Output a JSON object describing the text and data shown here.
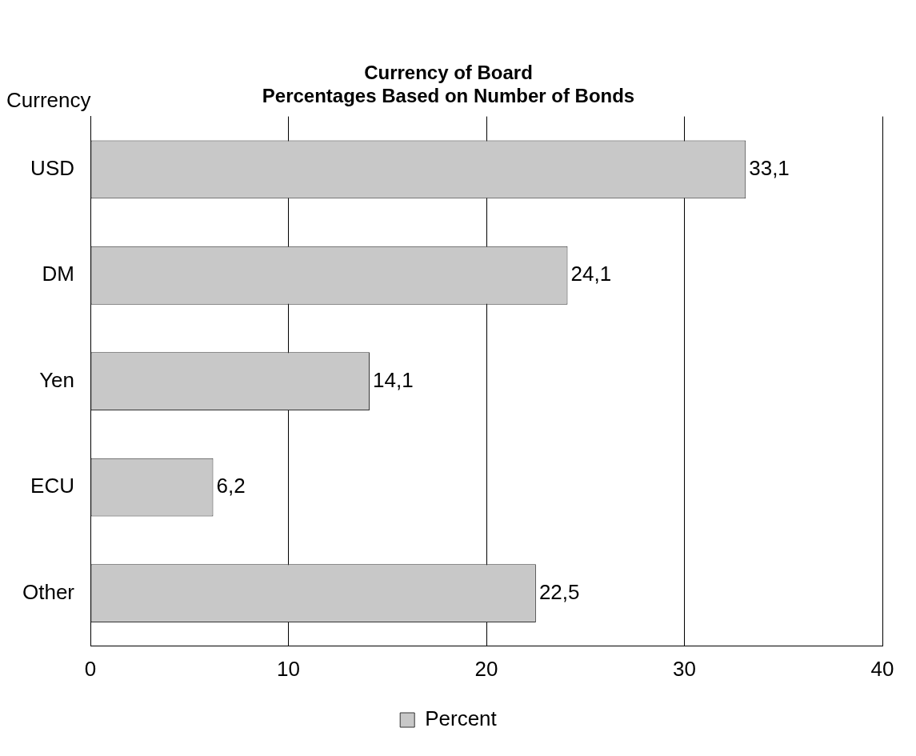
{
  "chart_data": {
    "type": "bar",
    "orientation": "horizontal",
    "title": [
      "Currency of Board",
      "Percentages Based on Number of Bonds"
    ],
    "ylabel": "Currency",
    "categories": [
      "USD",
      "DM",
      "Yen",
      "ECU",
      "Other"
    ],
    "series": [
      {
        "name": "Percent",
        "color": "#c8c8c8",
        "values": [
          33.1,
          24.1,
          14.1,
          6.2,
          22.5
        ],
        "value_labels": [
          "33,1",
          "24,1",
          "14,1",
          "6,2",
          "22,5"
        ]
      }
    ],
    "xlim": [
      0,
      40
    ],
    "xticks": [
      0,
      10,
      20,
      30,
      40
    ],
    "grid": "x",
    "legend": "bottom"
  }
}
